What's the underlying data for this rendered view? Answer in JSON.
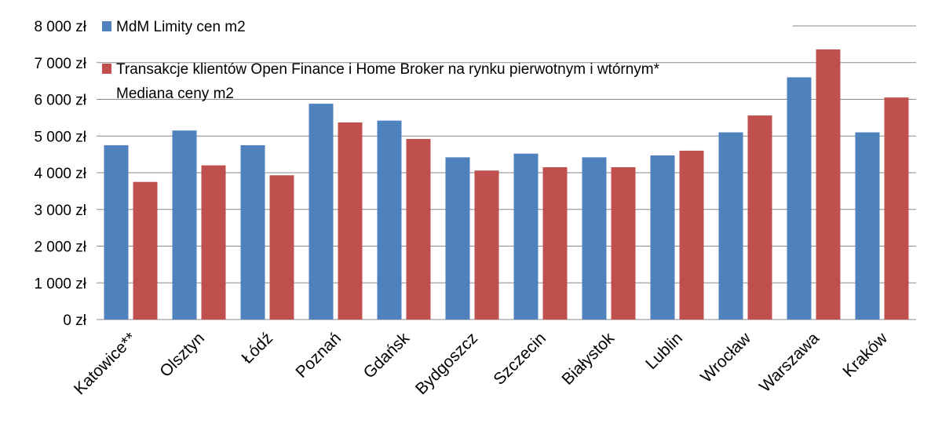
{
  "chart_data": {
    "type": "bar",
    "categories": [
      "Katowice**",
      "Olsztyn",
      "Łódź",
      "Poznań",
      "Gdańsk",
      "Bydgoszcz",
      "Szczecin",
      "Białystok",
      "Lublin",
      "Wrocław",
      "Warszawa",
      "Kraków"
    ],
    "series": [
      {
        "name": "MdM Limity cen m2",
        "color": "#4f81bd",
        "values": [
          4750,
          5150,
          4750,
          5880,
          5420,
          4420,
          4520,
          4420,
          4470,
          5100,
          6600,
          5100
        ]
      },
      {
        "name": "Transakcje klientów Open Finance i Home Broker na rynku pierwotnym i wtórnym* Mediana ceny m2",
        "name_lines": [
          "Transakcje klientów Open Finance i Home Broker na rynku pierwotnym i wtórnym*",
          "Mediana ceny m2"
        ],
        "color": "#c0504d",
        "values": [
          3750,
          4200,
          3930,
          5370,
          4920,
          4060,
          4150,
          4150,
          4600,
          5560,
          7360,
          6050
        ]
      }
    ],
    "yticks": [
      "0 zł",
      "1 000 zł",
      "2 000 zł",
      "3 000 zł",
      "4 000 zł",
      "5 000 zł",
      "6 000 zł",
      "7 000 zł",
      "8 000 zł"
    ],
    "ylim": [
      0,
      8000
    ],
    "grid": true,
    "legend_position": "top-left inside",
    "title": "",
    "xlabel": "",
    "ylabel": ""
  }
}
